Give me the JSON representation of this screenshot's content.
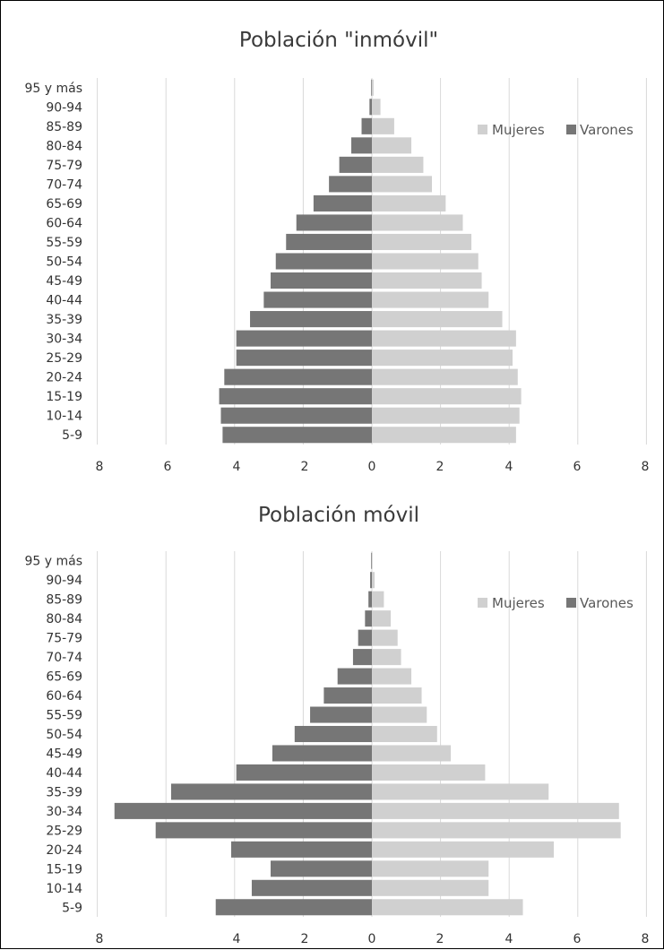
{
  "chart_data": [
    {
      "type": "bar",
      "orientation": "horizontal",
      "subtype": "population-pyramid",
      "title": "Población \"inmóvil\"",
      "categories": [
        "95 y más",
        "90-94",
        "85-89",
        "80-84",
        "75-79",
        "70-74",
        "65-69",
        "60-64",
        "55-59",
        "50-54",
        "45-49",
        "40-44",
        "35-39",
        "30-34",
        "25-29",
        "20-24",
        "15-19",
        "10-14",
        "5-9"
      ],
      "series": [
        {
          "name": "Mujeres",
          "color": "#d0d0d0",
          "values": [
            0.05,
            0.25,
            0.65,
            1.15,
            1.5,
            1.75,
            2.15,
            2.65,
            2.9,
            3.1,
            3.2,
            3.4,
            3.8,
            4.2,
            4.1,
            4.25,
            4.35,
            4.3,
            4.2
          ]
        },
        {
          "name": "Varones",
          "color": "#767676",
          "values": [
            0.02,
            0.07,
            0.3,
            0.6,
            0.95,
            1.25,
            1.7,
            2.2,
            2.5,
            2.8,
            2.95,
            3.15,
            3.55,
            3.95,
            3.95,
            4.3,
            4.45,
            4.4,
            4.35
          ]
        }
      ],
      "xticks": [
        "8",
        "6",
        "4",
        "2",
        "0",
        "2",
        "4",
        "6",
        "8"
      ],
      "xlim": [
        -8,
        8
      ],
      "grid": true,
      "legend": "top-right"
    },
    {
      "type": "bar",
      "orientation": "horizontal",
      "subtype": "population-pyramid",
      "title": "Población móvil",
      "categories": [
        "95 y más",
        "90-94",
        "85-89",
        "80-84",
        "75-79",
        "70-74",
        "65-69",
        "60-64",
        "55-59",
        "50-54",
        "45-49",
        "40-44",
        "35-39",
        "30-34",
        "25-29",
        "20-24",
        "15-19",
        "10-14",
        "5-9"
      ],
      "series": [
        {
          "name": "Mujeres",
          "color": "#d0d0d0",
          "values": [
            0.02,
            0.08,
            0.35,
            0.55,
            0.75,
            0.85,
            1.15,
            1.45,
            1.6,
            1.9,
            2.3,
            3.3,
            5.15,
            7.2,
            7.25,
            5.3,
            3.4,
            3.4,
            4.4
          ]
        },
        {
          "name": "Varones",
          "color": "#767676",
          "values": [
            0.02,
            0.05,
            0.1,
            0.2,
            0.4,
            0.55,
            1.0,
            1.4,
            1.8,
            2.25,
            2.9,
            3.95,
            5.85,
            7.5,
            6.3,
            4.1,
            2.95,
            3.5,
            4.55
          ]
        }
      ],
      "xticks": [
        "8",
        "4",
        "2",
        "0",
        "2",
        "4",
        "6",
        "8"
      ],
      "xlim": [
        -8,
        8
      ],
      "grid": true,
      "legend": "top-right"
    }
  ]
}
